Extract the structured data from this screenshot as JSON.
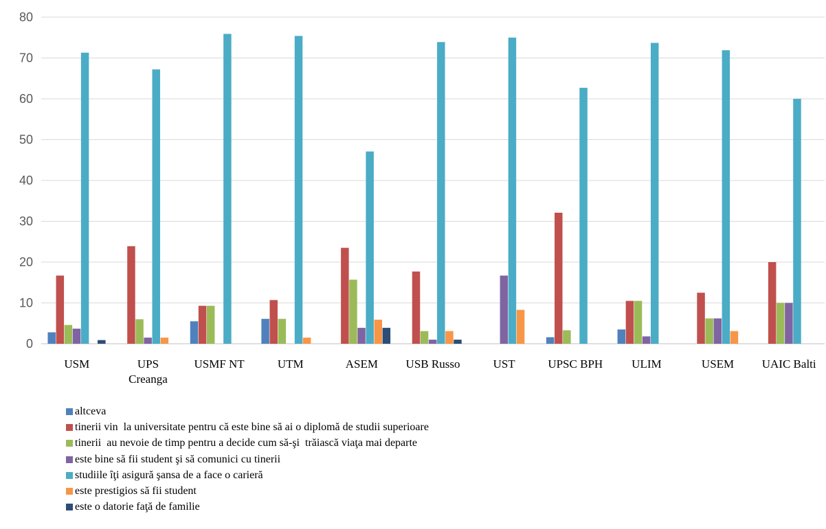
{
  "chart_data": {
    "type": "bar",
    "categories": [
      [
        "USM"
      ],
      [
        "UPS",
        "Creanga"
      ],
      [
        "USMF NT"
      ],
      [
        "UTM"
      ],
      [
        "ASEM"
      ],
      [
        "USB Russo"
      ],
      [
        "UST"
      ],
      [
        "UPSC BPH"
      ],
      [
        "ULIM"
      ],
      [
        "USEM"
      ],
      [
        "UAIC Balti"
      ]
    ],
    "ylim": [
      0,
      80
    ],
    "yticks": [
      0,
      10,
      20,
      30,
      40,
      50,
      60,
      70,
      80
    ],
    "grid": true,
    "legend_position": "bottom",
    "series": [
      {
        "name": "altceva",
        "color": "#4f81bd",
        "values": [
          2.8,
          0,
          5.5,
          6.1,
          0,
          0,
          0,
          1.6,
          3.5,
          0,
          0
        ]
      },
      {
        "name": "tinerii vin  la universitate pentru că este bine să ai o diplomă de studii superioare",
        "color": "#c0504d",
        "values": [
          16.7,
          23.9,
          9.3,
          10.7,
          23.5,
          17.7,
          0,
          32.1,
          10.5,
          12.5,
          20.0
        ]
      },
      {
        "name": "tinerii  au nevoie de timp pentru a decide cum să-şi  trăiască viaţa mai departe",
        "color": "#9bbb59",
        "values": [
          4.6,
          6.0,
          9.3,
          6.1,
          15.7,
          3.1,
          0,
          3.3,
          10.5,
          6.2,
          10.0
        ]
      },
      {
        "name": "este bine să fii student şi să comunici cu tinerii",
        "color": "#8064a2",
        "values": [
          3.7,
          1.5,
          0,
          0,
          3.9,
          1.0,
          16.7,
          0,
          1.8,
          6.2,
          10.0
        ]
      },
      {
        "name": "studiile îţi asigură şansa de a face o carieră",
        "color": "#4bacc6",
        "values": [
          71.3,
          67.2,
          75.9,
          75.4,
          47.1,
          73.9,
          75.0,
          62.7,
          73.7,
          71.9,
          60.0
        ]
      },
      {
        "name": "este prestigios să fii student",
        "color": "#f79646",
        "values": [
          0,
          1.5,
          0,
          1.5,
          5.9,
          3.1,
          8.3,
          0,
          0,
          3.1,
          0
        ]
      },
      {
        "name": "este o datorie faţă de familie",
        "color": "#2c4d75",
        "values": [
          0.9,
          0,
          0,
          0,
          3.9,
          1.0,
          0,
          0,
          0,
          0,
          0
        ]
      }
    ]
  }
}
